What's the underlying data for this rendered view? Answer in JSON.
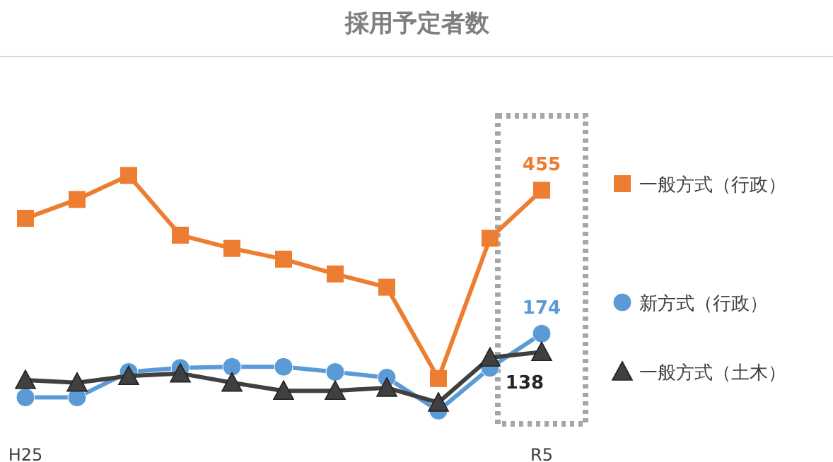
{
  "chart_data": {
    "type": "line",
    "title": "採用予定者数",
    "categories": [
      "H25",
      null,
      null,
      null,
      null,
      null,
      null,
      null,
      null,
      null,
      "R5"
    ],
    "legend": "right",
    "series": [
      {
        "name": "一般方式（行政）",
        "color": "#ed7d31",
        "marker": "square",
        "values": [
          400,
          437,
          484,
          367,
          341,
          320,
          291,
          265,
          86,
          361,
          455
        ],
        "value_labels": [
          null,
          null,
          null,
          null,
          null,
          null,
          null,
          null,
          null,
          null,
          "455"
        ]
      },
      {
        "name": "新方式（行政）",
        "color": "#5b9bd5",
        "marker": "circle",
        "values": [
          49,
          49,
          99,
          107,
          109,
          109,
          99,
          88,
          23,
          107,
          174
        ],
        "value_labels": [
          null,
          null,
          null,
          null,
          null,
          null,
          null,
          null,
          null,
          null,
          "174"
        ]
      },
      {
        "name": "一般方式（土木）",
        "color": "#404040",
        "marker": "triangle",
        "values": [
          83,
          78,
          91,
          96,
          78,
          62,
          62,
          68,
          39,
          127,
          138
        ],
        "value_labels": [
          null,
          null,
          null,
          null,
          null,
          null,
          null,
          null,
          null,
          null,
          "138"
        ]
      }
    ],
    "bands": [
      {
        "axis": "x",
        "from": "R5",
        "to": "R5"
      }
    ]
  }
}
